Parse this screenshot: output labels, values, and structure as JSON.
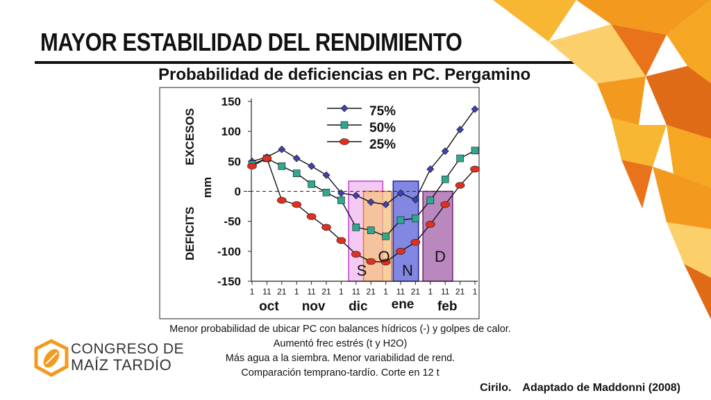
{
  "slide": {
    "title": "MAYOR ESTABILIDAD DEL RENDIMIENTO",
    "notes": [
      "Menor probabilidad de ubicar PC con balances hídricos (-) y golpes de calor.",
      "Aumentó frec estrés (t y H2O)",
      "Más agua a la siembra. Menor variabilidad de rend.",
      "Comparación temprano-tardío. Corte en 12 t"
    ],
    "citation_author": "Cirilo.",
    "citation_source": "Adaptado de Maddonni (2008)",
    "logo": {
      "line1": "CONGRESO DE",
      "line2": "MAÍZ TARDÍO"
    },
    "accent_color": "#F39A1E"
  },
  "chart_data": {
    "type": "line",
    "title": "Probabilidad de deficiencias en PC. Pergamino",
    "ylabel_upper": "EXCESOS",
    "ylabel_lower": "DEFICITS",
    "ylabel_unit": "mm",
    "ylim": [
      -150,
      150
    ],
    "yticks": [
      150,
      100,
      50,
      0,
      -50,
      -100,
      -150
    ],
    "x_tick_labels": [
      "1",
      "11",
      "21",
      "1",
      "11",
      "21",
      "1",
      "11",
      "21",
      "1",
      "11",
      "21",
      "1",
      "11",
      "21",
      "1"
    ],
    "months": [
      "oct",
      "nov",
      "dic",
      "ene",
      "feb"
    ],
    "legend_position": "top-center",
    "series": [
      {
        "name": "75%",
        "marker": "diamond",
        "color": "#4040B0",
        "values": [
          50,
          57,
          70,
          55,
          42,
          27,
          -3,
          -7,
          -18,
          -22,
          -3,
          -14,
          37,
          67,
          103,
          137
        ]
      },
      {
        "name": "50%",
        "marker": "square",
        "color": "#30A890",
        "values": [
          45,
          55,
          42,
          30,
          12,
          -2,
          -15,
          -60,
          -65,
          -75,
          -48,
          -45,
          -15,
          20,
          55,
          68
        ]
      },
      {
        "name": "25%",
        "marker": "circle",
        "color": "#E03020",
        "values": [
          42,
          55,
          -15,
          -22,
          -42,
          -60,
          -82,
          -105,
          -117,
          -118,
          -100,
          -85,
          -55,
          -22,
          10,
          37
        ]
      }
    ],
    "stage_boxes": [
      {
        "label": "S",
        "from_index": 6.5,
        "to_index": 8.8,
        "fill": "#F0B8F0",
        "stroke": "#C040D0"
      },
      {
        "label": "O",
        "from_index": 7.5,
        "to_index": 9.4,
        "fill": "#F5C080",
        "stroke": "#E07820"
      },
      {
        "label": "N",
        "from_index": 9.5,
        "to_index": 11.2,
        "fill": "#5860D8",
        "stroke": "#2020A0"
      },
      {
        "label": "D",
        "from_index": 11.5,
        "to_index": 13.5,
        "fill": "#A060A8",
        "stroke": "#702070"
      }
    ],
    "reference_line": {
      "y": 0,
      "style": "dashed"
    }
  }
}
